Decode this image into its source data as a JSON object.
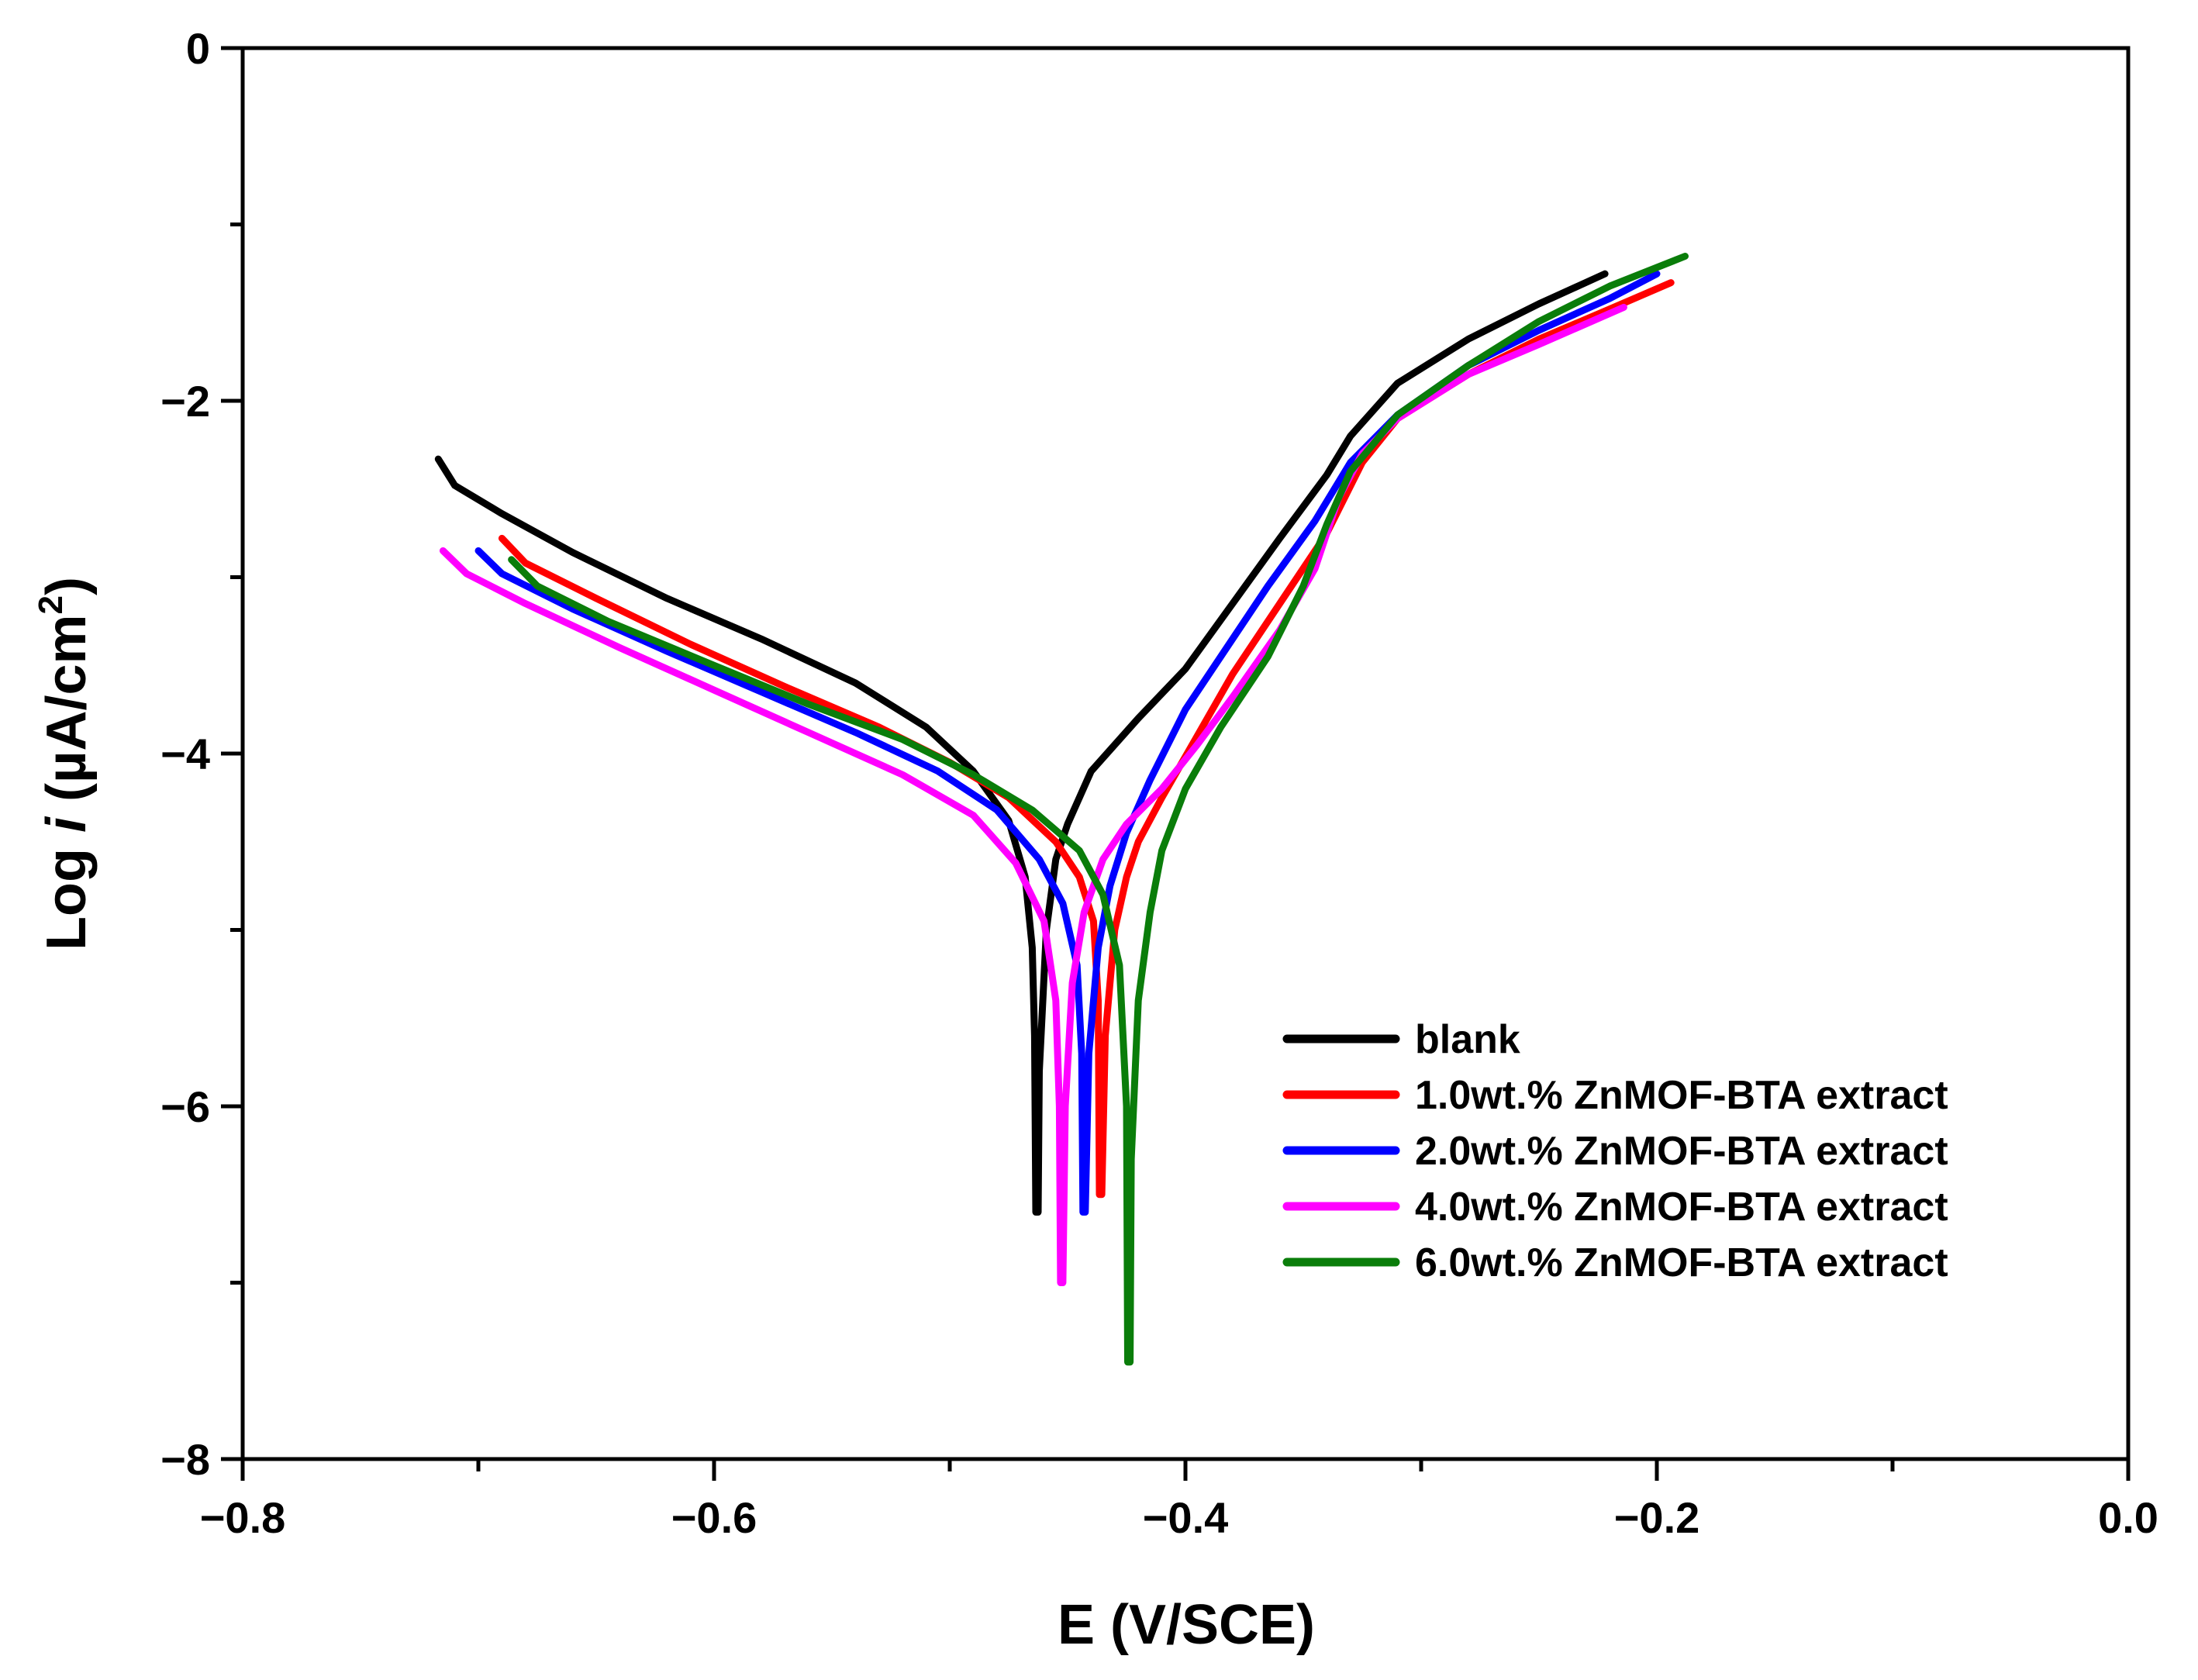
{
  "chart_data": {
    "type": "line",
    "title": "",
    "xlabel": "E (V/SCE)",
    "ylabel_prefix": "Log ",
    "ylabel_italic": "i",
    "ylabel_unit": " (µA/cm",
    "ylabel_sup": "2",
    "ylabel_close": ")",
    "xlim": [
      -0.8,
      0.0
    ],
    "ylim": [
      -8,
      0
    ],
    "xticks": [
      -0.8,
      -0.6,
      -0.4,
      -0.2,
      0.0
    ],
    "xtick_labels": [
      "−0.8",
      "−0.6",
      "−0.4",
      "−0.2",
      "0.0"
    ],
    "yticks": [
      0,
      -2,
      -4,
      -6,
      -8
    ],
    "ytick_labels": [
      "0",
      "−2",
      "−4",
      "−6",
      "−8"
    ],
    "grid": false,
    "legend_position": "bottom-right",
    "series": [
      {
        "name": "blank",
        "color": "#000000",
        "points": [
          [
            -0.717,
            -2.33
          ],
          [
            -0.71,
            -2.48
          ],
          [
            -0.69,
            -2.64
          ],
          [
            -0.66,
            -2.86
          ],
          [
            -0.62,
            -3.12
          ],
          [
            -0.58,
            -3.35
          ],
          [
            -0.54,
            -3.6
          ],
          [
            -0.51,
            -3.85
          ],
          [
            -0.49,
            -4.1
          ],
          [
            -0.475,
            -4.38
          ],
          [
            -0.468,
            -4.7
          ],
          [
            -0.465,
            -5.1
          ],
          [
            -0.464,
            -5.6
          ],
          [
            -0.4635,
            -6.6
          ],
          [
            -0.4625,
            -6.6
          ],
          [
            -0.462,
            -5.8
          ],
          [
            -0.459,
            -5.0
          ],
          [
            -0.455,
            -4.6
          ],
          [
            -0.45,
            -4.4
          ],
          [
            -0.44,
            -4.1
          ],
          [
            -0.42,
            -3.8
          ],
          [
            -0.4,
            -3.52
          ],
          [
            -0.38,
            -3.15
          ],
          [
            -0.36,
            -2.78
          ],
          [
            -0.34,
            -2.42
          ],
          [
            -0.33,
            -2.2
          ],
          [
            -0.31,
            -1.9
          ],
          [
            -0.28,
            -1.65
          ],
          [
            -0.25,
            -1.45
          ],
          [
            -0.222,
            -1.28
          ]
        ]
      },
      {
        "name": "1.0wt.% ZnMOF-BTA extract",
        "color": "#ff0000",
        "points": [
          [
            -0.69,
            -2.78
          ],
          [
            -0.68,
            -2.92
          ],
          [
            -0.65,
            -3.12
          ],
          [
            -0.61,
            -3.38
          ],
          [
            -0.57,
            -3.62
          ],
          [
            -0.53,
            -3.85
          ],
          [
            -0.5,
            -4.05
          ],
          [
            -0.475,
            -4.25
          ],
          [
            -0.455,
            -4.5
          ],
          [
            -0.445,
            -4.7
          ],
          [
            -0.439,
            -4.95
          ],
          [
            -0.437,
            -5.4
          ],
          [
            -0.4365,
            -6.5
          ],
          [
            -0.4355,
            -6.5
          ],
          [
            -0.434,
            -5.6
          ],
          [
            -0.43,
            -5.0
          ],
          [
            -0.425,
            -4.7
          ],
          [
            -0.42,
            -4.5
          ],
          [
            -0.41,
            -4.25
          ],
          [
            -0.395,
            -3.9
          ],
          [
            -0.38,
            -3.55
          ],
          [
            -0.36,
            -3.15
          ],
          [
            -0.34,
            -2.75
          ],
          [
            -0.325,
            -2.35
          ],
          [
            -0.31,
            -2.1
          ],
          [
            -0.28,
            -1.85
          ],
          [
            -0.25,
            -1.65
          ],
          [
            -0.22,
            -1.48
          ],
          [
            -0.194,
            -1.33
          ]
        ]
      },
      {
        "name": "2.0wt.% ZnMOF-BTA extract",
        "color": "#0000ff",
        "points": [
          [
            -0.7,
            -2.85
          ],
          [
            -0.69,
            -2.98
          ],
          [
            -0.66,
            -3.18
          ],
          [
            -0.62,
            -3.42
          ],
          [
            -0.58,
            -3.65
          ],
          [
            -0.54,
            -3.88
          ],
          [
            -0.505,
            -4.1
          ],
          [
            -0.48,
            -4.32
          ],
          [
            -0.462,
            -4.6
          ],
          [
            -0.452,
            -4.85
          ],
          [
            -0.446,
            -5.2
          ],
          [
            -0.444,
            -5.7
          ],
          [
            -0.4435,
            -6.6
          ],
          [
            -0.4425,
            -6.6
          ],
          [
            -0.441,
            -5.7
          ],
          [
            -0.437,
            -5.1
          ],
          [
            -0.432,
            -4.75
          ],
          [
            -0.425,
            -4.45
          ],
          [
            -0.415,
            -4.15
          ],
          [
            -0.4,
            -3.75
          ],
          [
            -0.385,
            -3.45
          ],
          [
            -0.365,
            -3.05
          ],
          [
            -0.345,
            -2.68
          ],
          [
            -0.33,
            -2.35
          ],
          [
            -0.31,
            -2.08
          ],
          [
            -0.28,
            -1.8
          ],
          [
            -0.25,
            -1.6
          ],
          [
            -0.22,
            -1.42
          ],
          [
            -0.2,
            -1.28
          ]
        ]
      },
      {
        "name": "4.0wt.% ZnMOF-BTA extract",
        "color": "#ff00ff",
        "points": [
          [
            -0.715,
            -2.85
          ],
          [
            -0.705,
            -2.98
          ],
          [
            -0.68,
            -3.15
          ],
          [
            -0.64,
            -3.4
          ],
          [
            -0.6,
            -3.64
          ],
          [
            -0.56,
            -3.88
          ],
          [
            -0.52,
            -4.12
          ],
          [
            -0.49,
            -4.35
          ],
          [
            -0.472,
            -4.62
          ],
          [
            -0.46,
            -4.95
          ],
          [
            -0.455,
            -5.4
          ],
          [
            -0.4535,
            -6.0
          ],
          [
            -0.453,
            -7.0
          ],
          [
            -0.452,
            -7.0
          ],
          [
            -0.451,
            -6.0
          ],
          [
            -0.448,
            -5.3
          ],
          [
            -0.443,
            -4.9
          ],
          [
            -0.435,
            -4.6
          ],
          [
            -0.425,
            -4.4
          ],
          [
            -0.41,
            -4.2
          ],
          [
            -0.395,
            -3.95
          ],
          [
            -0.38,
            -3.68
          ],
          [
            -0.36,
            -3.3
          ],
          [
            -0.345,
            -2.95
          ],
          [
            -0.335,
            -2.55
          ],
          [
            -0.325,
            -2.3
          ],
          [
            -0.31,
            -2.1
          ],
          [
            -0.28,
            -1.85
          ],
          [
            -0.25,
            -1.68
          ],
          [
            -0.214,
            -1.47
          ]
        ]
      },
      {
        "name": "6.0wt.% ZnMOF-BTA extract",
        "color": "#0a7d0a",
        "points": [
          [
            -0.686,
            -2.9
          ],
          [
            -0.675,
            -3.05
          ],
          [
            -0.645,
            -3.25
          ],
          [
            -0.6,
            -3.5
          ],
          [
            -0.56,
            -3.72
          ],
          [
            -0.52,
            -3.92
          ],
          [
            -0.49,
            -4.12
          ],
          [
            -0.465,
            -4.32
          ],
          [
            -0.445,
            -4.55
          ],
          [
            -0.435,
            -4.8
          ],
          [
            -0.428,
            -5.2
          ],
          [
            -0.425,
            -6.0
          ],
          [
            -0.4245,
            -7.45
          ],
          [
            -0.4235,
            -7.45
          ],
          [
            -0.423,
            -6.3
          ],
          [
            -0.42,
            -5.4
          ],
          [
            -0.415,
            -4.9
          ],
          [
            -0.41,
            -4.55
          ],
          [
            -0.4,
            -4.2
          ],
          [
            -0.385,
            -3.85
          ],
          [
            -0.365,
            -3.45
          ],
          [
            -0.35,
            -3.05
          ],
          [
            -0.34,
            -2.7
          ],
          [
            -0.33,
            -2.4
          ],
          [
            -0.31,
            -2.08
          ],
          [
            -0.28,
            -1.8
          ],
          [
            -0.25,
            -1.55
          ],
          [
            -0.22,
            -1.35
          ],
          [
            -0.188,
            -1.18
          ]
        ]
      }
    ]
  }
}
